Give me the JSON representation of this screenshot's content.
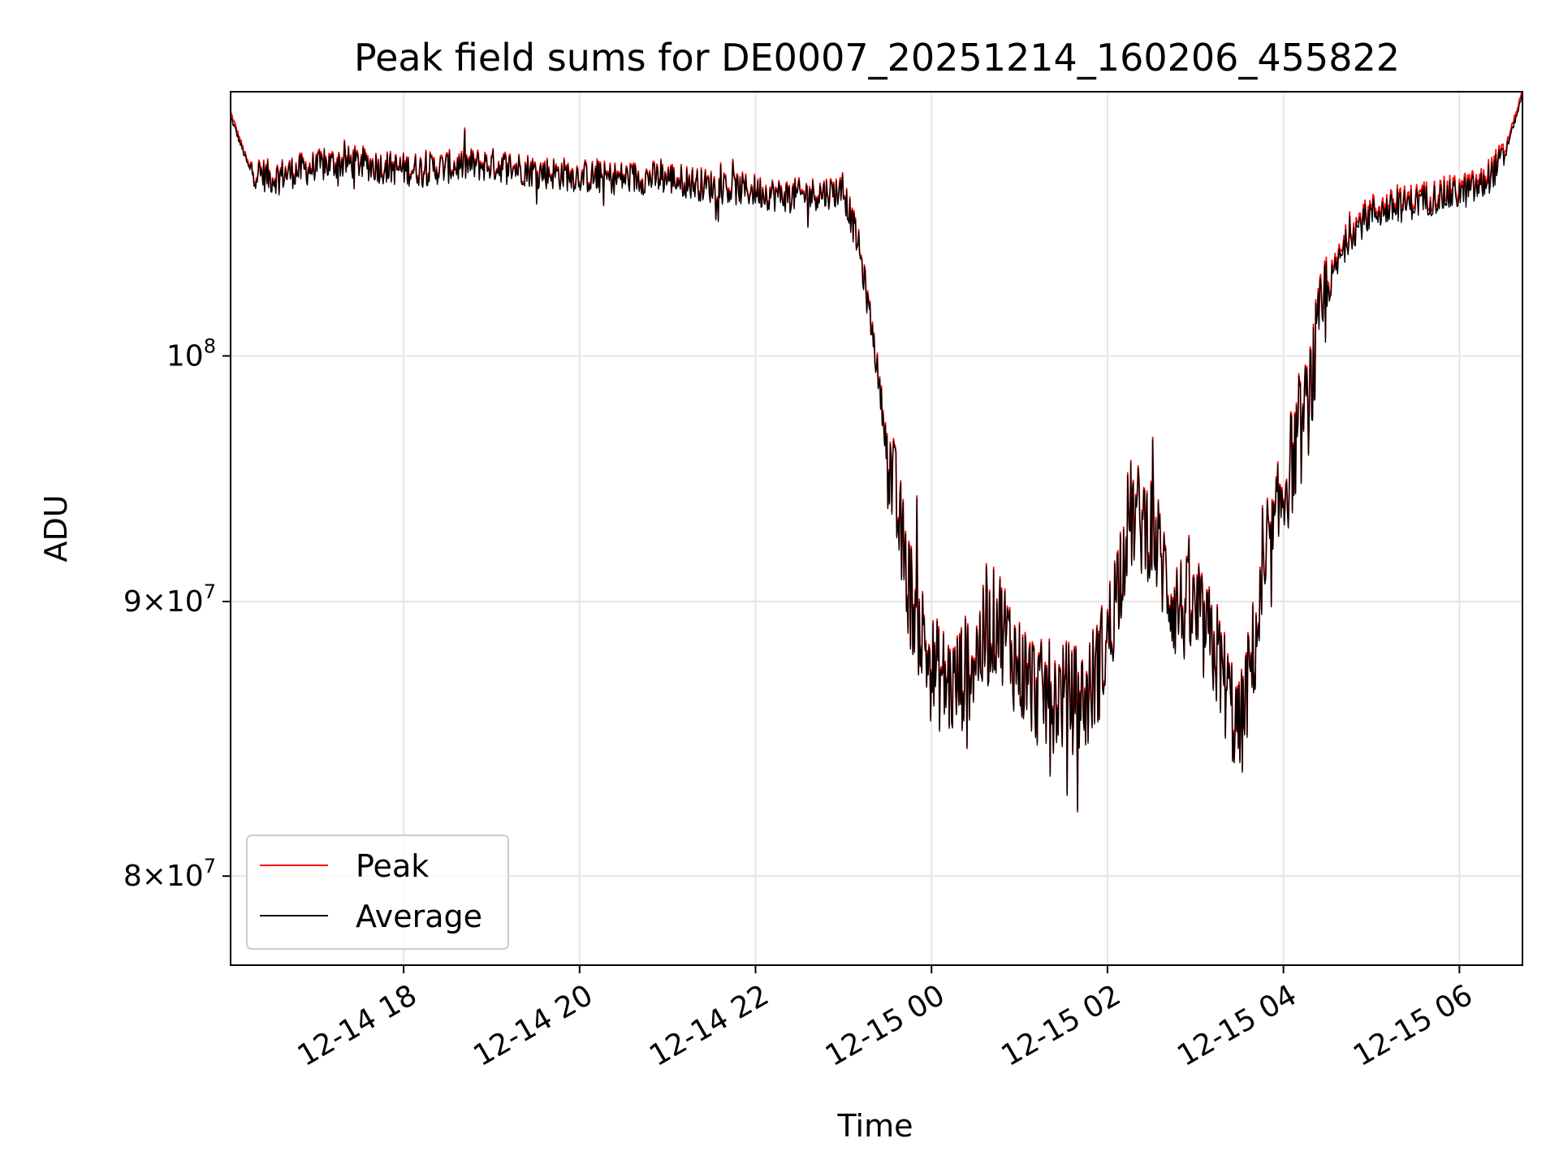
{
  "chart_data": {
    "type": "line",
    "title": "Peak field sums for DE0007_20251214_160206_455822",
    "xlabel": "Time",
    "ylabel": "ADU",
    "yscale": "log",
    "ylim": [
      77000000,
      112000000
    ],
    "xlim": [
      "2025-12-14 16:02",
      "2025-12-15 06:43"
    ],
    "x_ticks": [
      "12-14 18",
      "12-14 20",
      "12-14 22",
      "12-15 00",
      "12-15 02",
      "12-15 04",
      "12-15 06"
    ],
    "x_tick_times": [
      "2025-12-14 18:00",
      "2025-12-14 20:00",
      "2025-12-14 22:00",
      "2025-12-15 00:00",
      "2025-12-15 02:00",
      "2025-12-15 04:00",
      "2025-12-15 06:00"
    ],
    "y_ticks": [
      {
        "value": 80000000,
        "mant": "8",
        "exp": "7"
      },
      {
        "value": 90000000,
        "mant": "9",
        "exp": "7"
      },
      {
        "value": 100000000,
        "mant": "",
        "exp": "8"
      }
    ],
    "grid": true,
    "legend_position": "lower-left",
    "series": [
      {
        "name": "Peak",
        "color": "#ff0000",
        "x": [
          "2025-12-14 16:02",
          "2025-12-14 16:15",
          "2025-12-14 16:30",
          "2025-12-14 16:45",
          "2025-12-14 17:00",
          "2025-12-14 17:15",
          "2025-12-14 17:30",
          "2025-12-14 17:45",
          "2025-12-14 18:00",
          "2025-12-14 18:15",
          "2025-12-14 18:30",
          "2025-12-14 18:45",
          "2025-12-14 19:00",
          "2025-12-14 19:15",
          "2025-12-14 19:30",
          "2025-12-14 19:45",
          "2025-12-14 20:00",
          "2025-12-14 20:15",
          "2025-12-14 20:30",
          "2025-12-14 20:45",
          "2025-12-14 21:00",
          "2025-12-14 21:15",
          "2025-12-14 21:30",
          "2025-12-14 21:45",
          "2025-12-14 22:00",
          "2025-12-14 22:15",
          "2025-12-14 22:30",
          "2025-12-14 22:45",
          "2025-12-14 23:00",
          "2025-12-14 23:10",
          "2025-12-14 23:20",
          "2025-12-14 23:30",
          "2025-12-14 23:45",
          "2025-12-15 00:00",
          "2025-12-15 00:15",
          "2025-12-15 00:30",
          "2025-12-15 00:45",
          "2025-12-15 01:00",
          "2025-12-15 01:15",
          "2025-12-15 01:30",
          "2025-12-15 01:45",
          "2025-12-15 02:00",
          "2025-12-15 02:15",
          "2025-12-15 02:30",
          "2025-12-15 02:45",
          "2025-12-15 03:00",
          "2025-12-15 03:15",
          "2025-12-15 03:30",
          "2025-12-15 03:45",
          "2025-12-15 04:00",
          "2025-12-15 04:15",
          "2025-12-15 04:30",
          "2025-12-15 04:45",
          "2025-12-15 05:00",
          "2025-12-15 05:15",
          "2025-12-15 05:30",
          "2025-12-15 05:45",
          "2025-12-15 06:00",
          "2025-12-15 06:15",
          "2025-12-15 06:30",
          "2025-12-15 06:43"
        ],
        "y": [
          111000000,
          108400000,
          108000000,
          108300000,
          108500000,
          108700000,
          108700000,
          108500000,
          108400000,
          108400000,
          108500000,
          108600000,
          108600000,
          108500000,
          108300000,
          108200000,
          108100000,
          108000000,
          108000000,
          108000000,
          108000000,
          107800000,
          107600000,
          107500000,
          107400000,
          107200000,
          107200000,
          107300000,
          107400000,
          105000000,
          101000000,
          96000000,
          90500000,
          87500000,
          86800000,
          88000000,
          89500000,
          87500000,
          86500000,
          86500000,
          86300000,
          88500000,
          93500000,
          93000000,
          90000000,
          89500000,
          88000000,
          85000000,
          90000000,
          94500000,
          97500000,
          103000000,
          105500000,
          106500000,
          106700000,
          107000000,
          107200000,
          107400000,
          107700000,
          109000000,
          112000000
        ]
      },
      {
        "name": "Average",
        "color": "#000000",
        "x": [
          "2025-12-14 16:02",
          "2025-12-14 16:15",
          "2025-12-14 16:30",
          "2025-12-14 16:45",
          "2025-12-14 17:00",
          "2025-12-14 17:15",
          "2025-12-14 17:30",
          "2025-12-14 17:45",
          "2025-12-14 18:00",
          "2025-12-14 18:15",
          "2025-12-14 18:30",
          "2025-12-14 18:45",
          "2025-12-14 19:00",
          "2025-12-14 19:15",
          "2025-12-14 19:30",
          "2025-12-14 19:45",
          "2025-12-14 20:00",
          "2025-12-14 20:15",
          "2025-12-14 20:30",
          "2025-12-14 20:45",
          "2025-12-14 21:00",
          "2025-12-14 21:15",
          "2025-12-14 21:30",
          "2025-12-14 21:45",
          "2025-12-14 22:00",
          "2025-12-14 22:15",
          "2025-12-14 22:30",
          "2025-12-14 22:45",
          "2025-12-14 23:00",
          "2025-12-14 23:10",
          "2025-12-14 23:20",
          "2025-12-14 23:30",
          "2025-12-14 23:45",
          "2025-12-15 00:00",
          "2025-12-15 00:15",
          "2025-12-15 00:30",
          "2025-12-15 00:45",
          "2025-12-15 01:00",
          "2025-12-15 01:15",
          "2025-12-15 01:30",
          "2025-12-15 01:45",
          "2025-12-15 02:00",
          "2025-12-15 02:15",
          "2025-12-15 02:30",
          "2025-12-15 02:45",
          "2025-12-15 03:00",
          "2025-12-15 03:15",
          "2025-12-15 03:30",
          "2025-12-15 03:45",
          "2025-12-15 04:00",
          "2025-12-15 04:15",
          "2025-12-15 04:30",
          "2025-12-15 04:45",
          "2025-12-15 05:00",
          "2025-12-15 05:15",
          "2025-12-15 05:30",
          "2025-12-15 05:45",
          "2025-12-15 06:00",
          "2025-12-15 06:15",
          "2025-12-15 06:30",
          "2025-12-15 06:43"
        ],
        "y": [
          110800000,
          108300000,
          107900000,
          108200000,
          108400000,
          108600000,
          108600000,
          108400000,
          108300000,
          108300000,
          108400000,
          108500000,
          108500000,
          108400000,
          108200000,
          108100000,
          108000000,
          107900000,
          107900000,
          107900000,
          107900000,
          107700000,
          107500000,
          107400000,
          107300000,
          107100000,
          107100000,
          107200000,
          107300000,
          104900000,
          100900000,
          95900000,
          90400000,
          87400000,
          86700000,
          87900000,
          89400000,
          87400000,
          86400000,
          86400000,
          86200000,
          88400000,
          93400000,
          92900000,
          89900000,
          89400000,
          87900000,
          84900000,
          89900000,
          94400000,
          97400000,
          102800000,
          105300000,
          106300000,
          106500000,
          106800000,
          107000000,
          107200000,
          107500000,
          108800000,
          111800000
        ]
      }
    ]
  }
}
